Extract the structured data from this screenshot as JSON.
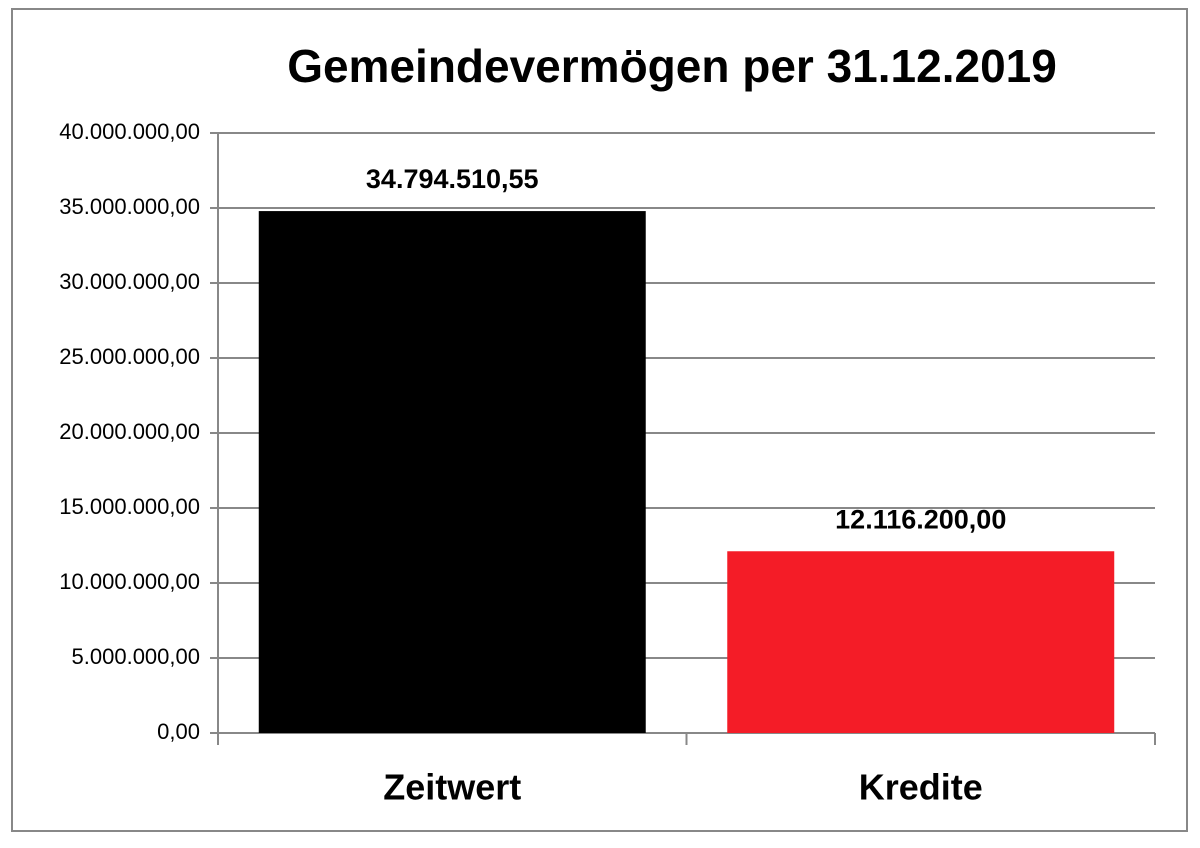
{
  "chart_data": {
    "type": "bar",
    "title": "Gemeindevermögen per 31.12.2019",
    "categories": [
      "Zeitwert",
      "Kredite"
    ],
    "values": [
      34794510.55,
      12116200
    ],
    "value_labels": [
      "34.794.510,55",
      "12.116.200,00"
    ],
    "colors": [
      "#000000",
      "#f41c27"
    ],
    "ylim": [
      0,
      40000000
    ],
    "yticks": [
      {
        "value": 0,
        "label": "0,00"
      },
      {
        "value": 5000000,
        "label": "5.000.000,00"
      },
      {
        "value": 10000000,
        "label": "10.000.000,00"
      },
      {
        "value": 15000000,
        "label": "15.000.000,00"
      },
      {
        "value": 20000000,
        "label": "20.000.000,00"
      },
      {
        "value": 25000000,
        "label": "25.000.000,00"
      },
      {
        "value": 30000000,
        "label": "30.000.000,00"
      },
      {
        "value": 35000000,
        "label": "35.000.000,00"
      },
      {
        "value": 40000000,
        "label": "40.000.000,00"
      }
    ],
    "grid": true
  }
}
